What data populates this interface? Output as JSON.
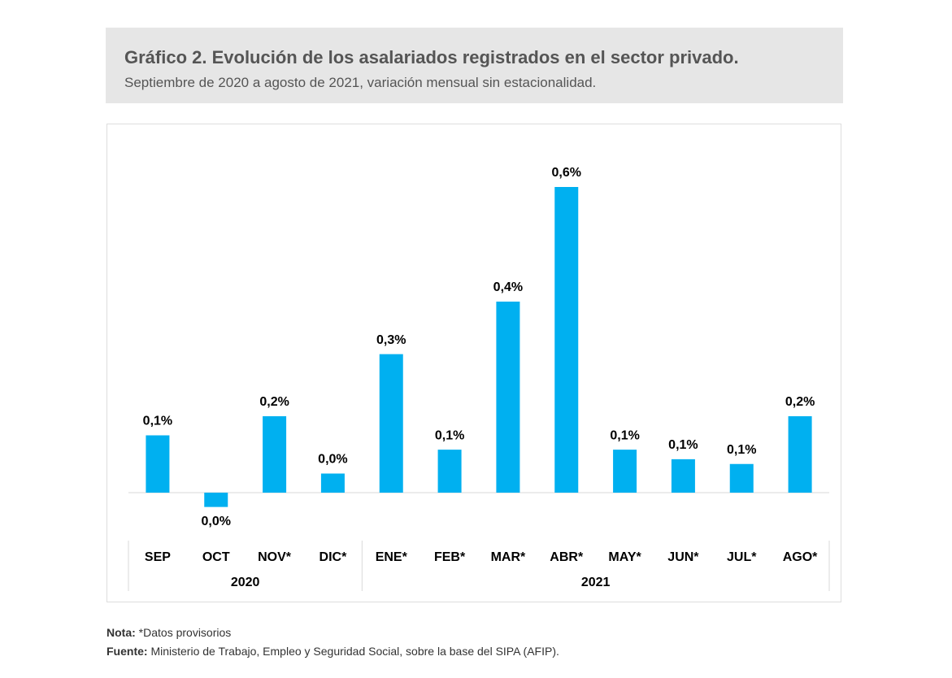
{
  "header": {
    "title": "Gráfico 2. Evolución de los asalariados registrados en el sector privado.",
    "subtitle": "Septiembre de 2020 a agosto de 2021, variación mensual sin estacionalidad."
  },
  "chart_data": {
    "type": "bar",
    "color": "#00b0f0",
    "categories": [
      "SEP",
      "OCT",
      "NOV*",
      "DIC*",
      "ENE*",
      "FEB*",
      "MAR*",
      "ABR*",
      "MAY*",
      "JUN*",
      "JUL*",
      "AGO*"
    ],
    "groups": [
      "2020",
      "2021"
    ],
    "values": [
      0.12,
      -0.03,
      0.16,
      0.04,
      0.29,
      0.09,
      0.4,
      0.64,
      0.09,
      0.07,
      0.06,
      0.16
    ],
    "value_labels": [
      "0,1%",
      "0,0%",
      "0,2%",
      "0,0%",
      "0,3%",
      "0,1%",
      "0,4%",
      "0,6%",
      "0,1%",
      "0,1%",
      "0,1%",
      "0,2%"
    ]
  },
  "footer": {
    "note_label": "Nota:",
    "note": "*Datos provisorios",
    "source_label": "Fuente:",
    "source": "Ministerio de Trabajo, Empleo y Seguridad Social, sobre la base del SIPA (AFIP)."
  }
}
